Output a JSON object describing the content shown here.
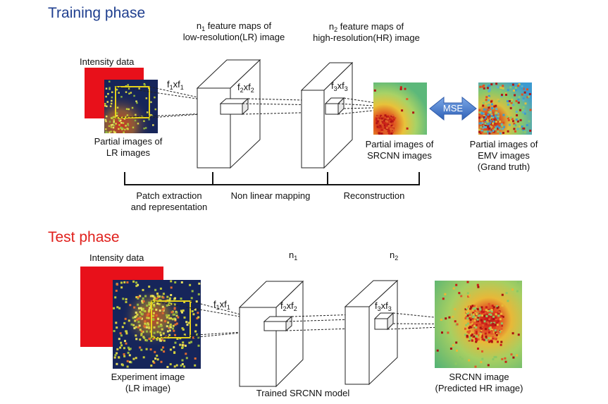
{
  "colors": {
    "training_title": "#1f3f8f",
    "test_title": "#e0201c",
    "intensity_red": "#e8101a",
    "lr_bg": "#16255a",
    "mse_arrow": "#4b7fd0",
    "patch_box": "#e6d21a"
  },
  "training": {
    "title": "Training phase",
    "n1_pre": "n",
    "n1_sub": "1",
    "n1_line1_post": " feature maps of",
    "n1_line2": "low-resolution(LR) image",
    "n2_pre": "n",
    "n2_sub": "2",
    "n2_line1_post": " feature maps of",
    "n2_line2": "high-resolution(HR) image",
    "intensity": "Intensity data",
    "f1": {
      "a": "f",
      "s1": "1",
      "b": "xf",
      "s2": "1"
    },
    "f2": {
      "a": "f",
      "s1": "2",
      "b": "xf",
      "s2": "2"
    },
    "f3": {
      "a": "f",
      "s1": "3",
      "b": "xf",
      "s2": "3"
    },
    "lr_cap1": "Partial images of",
    "lr_cap2": "LR images",
    "sr_cap1": "Partial images of",
    "sr_cap2": "SRCNN images",
    "emv_cap1": "Partial images of",
    "emv_cap2": "EMV images",
    "emv_cap3": "(Grand truth)",
    "mse": "MSE",
    "stage1_line1": "Patch extraction",
    "stage1_line2": "and representation",
    "stage2": "Non linear mapping",
    "stage3": "Reconstruction"
  },
  "test": {
    "title": "Test phase",
    "intensity": "Intensity data",
    "n1_pre": "n",
    "n1_sub": "1",
    "n2_pre": "n",
    "n2_sub": "2",
    "f1": {
      "a": "f",
      "s1": "1",
      "b": "xf",
      "s2": "1"
    },
    "f2": {
      "a": "f",
      "s1": "2",
      "b": "xf",
      "s2": "2"
    },
    "f3": {
      "a": "f",
      "s1": "3",
      "b": "xf",
      "s2": "3"
    },
    "exp_cap1": "Experiment image",
    "exp_cap2": "(LR image)",
    "model": "Trained SRCNN model",
    "out_cap1": "SRCNN image",
    "out_cap2": "(Predicted HR image)"
  }
}
